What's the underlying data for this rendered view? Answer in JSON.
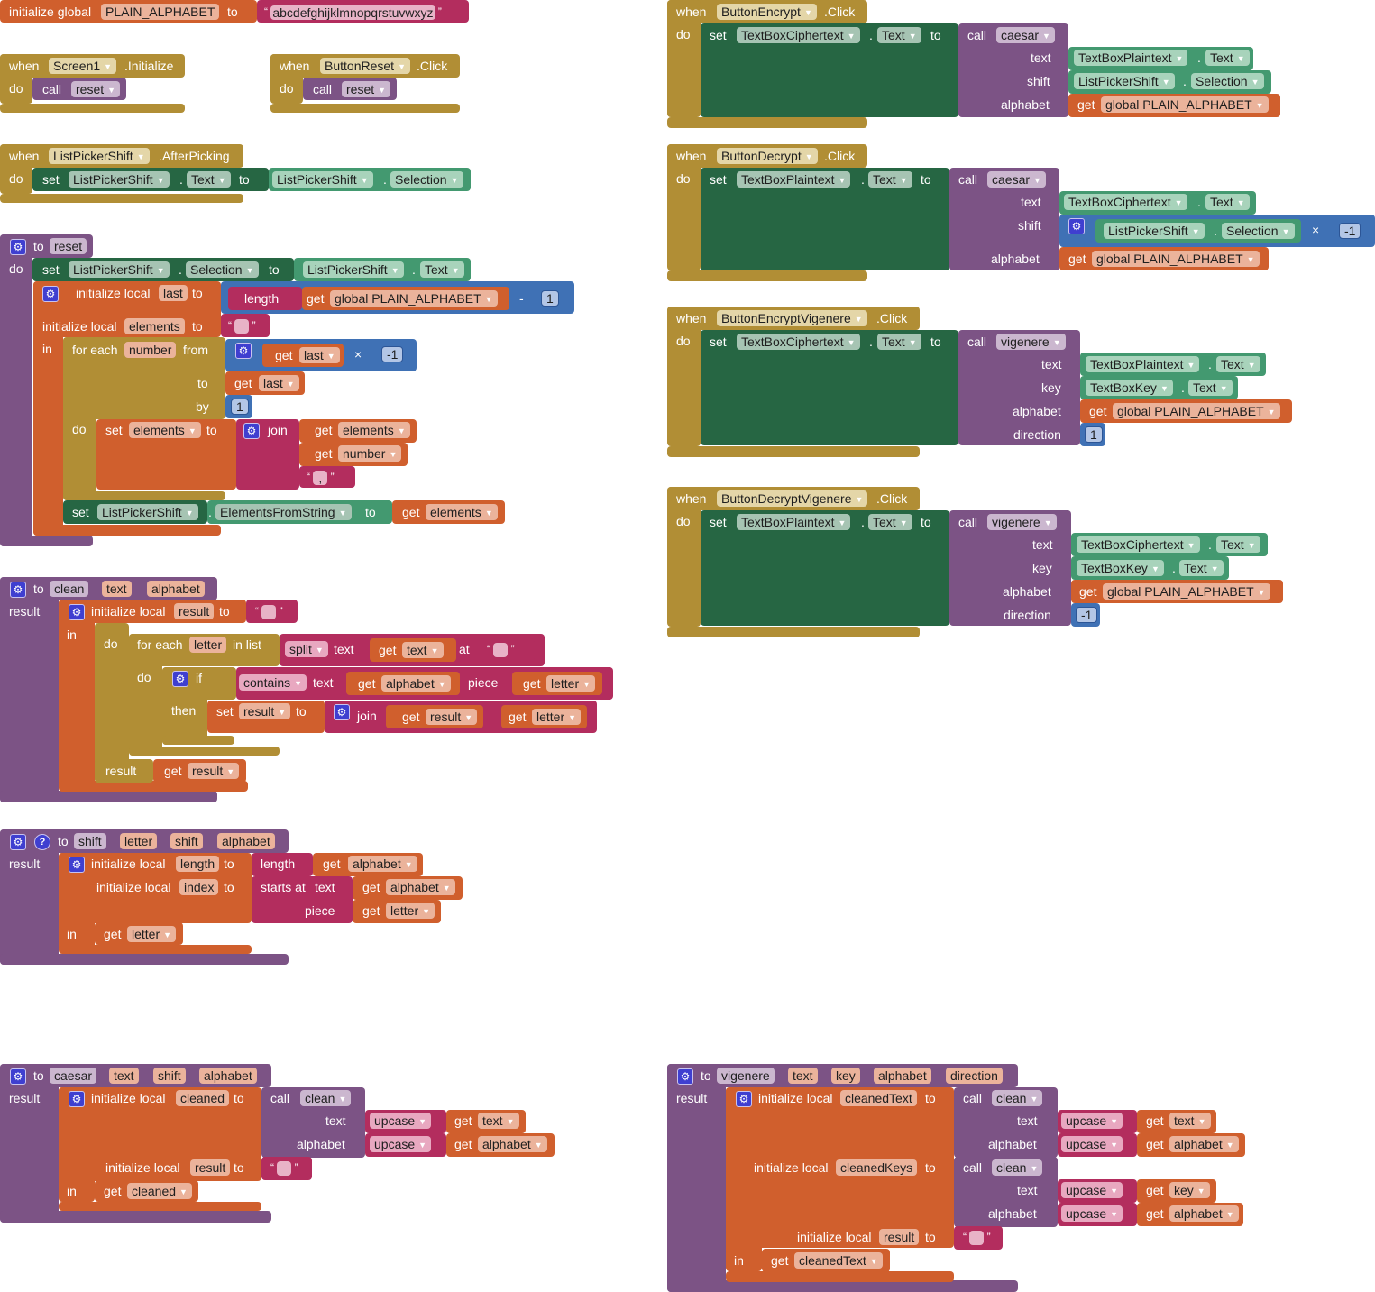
{
  "palette": {
    "event": "#b18e35",
    "setter": "#266643",
    "component": "#439970",
    "procedure": "#7c5385",
    "variable": "#d05f2d",
    "math": "#3f71b5",
    "text": "#b32d5e"
  },
  "blocks": [
    {
      "texts": [
        "initialize global",
        "PLAIN_ALPHABET",
        "to",
        "abcdefghijklmnopqrstuvwxyz"
      ]
    },
    {
      "texts": [
        "when",
        "Screen1",
        ".Initialize",
        "do",
        "call",
        "reset"
      ]
    },
    {
      "texts": [
        "when",
        "ButtonReset",
        ".Click",
        "do",
        "call",
        "reset"
      ]
    },
    {
      "texts": [
        "when",
        "ListPickerShift",
        ".AfterPicking",
        "do",
        "set",
        "ListPickerShift",
        ".",
        "Text",
        "to",
        "ListPickerShift",
        ".",
        "Selection"
      ]
    },
    {
      "texts": [
        "to",
        "reset",
        "do",
        "set",
        "ListPickerShift",
        ".",
        "Selection",
        "to",
        "ListPickerShift",
        ".",
        "Text",
        "initialize local",
        "last",
        "to",
        "length",
        "get",
        "global PLAIN_ALPHABET",
        "-",
        "1",
        "initialize local",
        "elements",
        "to",
        "",
        "in",
        "for each",
        "number",
        "from",
        "get",
        "last",
        "×",
        "-1",
        "to",
        "get",
        "last",
        "by",
        "1",
        "do",
        "set",
        "elements",
        "to",
        "join",
        "get",
        "elements",
        "get",
        "number",
        ",",
        "set",
        "ListPickerShift",
        ".",
        "ElementsFromString",
        "to",
        "get",
        "elements"
      ]
    },
    {
      "texts": [
        "to",
        "clean",
        "text",
        "alphabet",
        "result",
        "initialize local",
        "result",
        "to",
        "",
        "in",
        "do",
        "for each",
        "letter",
        "in list",
        "split",
        "text",
        "get",
        "text",
        "at",
        "",
        "do",
        "if",
        "contains",
        "text",
        "get",
        "alphabet",
        "piece",
        "get",
        "letter",
        "then",
        "set",
        "result",
        "to",
        "join",
        "get",
        "result",
        "get",
        "letter",
        "result",
        "get",
        "result"
      ]
    },
    {
      "texts": [
        "to",
        "shift",
        "letter",
        "shift",
        "alphabet",
        "result",
        "initialize local",
        "length",
        "to",
        "length",
        "get",
        "alphabet",
        "initialize local",
        "index",
        "to",
        "starts at",
        "text",
        "get",
        "alphabet",
        "piece",
        "get",
        "letter",
        "in",
        "get",
        "letter"
      ]
    },
    {
      "texts": [
        "to",
        "caesar",
        "text",
        "shift",
        "alphabet",
        "result",
        "initialize local",
        "cleaned",
        "to",
        "call",
        "clean",
        "text",
        "upcase",
        "get",
        "text",
        "alphabet",
        "upcase",
        "get",
        "alphabet",
        "initialize local",
        "result",
        "to",
        "",
        "in",
        "get",
        "cleaned"
      ]
    },
    {
      "texts": [
        "to",
        "vigenere",
        "text",
        "key",
        "alphabet",
        "direction",
        "result",
        "initialize local",
        "cleanedText",
        "to",
        "call",
        "clean",
        "text",
        "upcase",
        "get",
        "text",
        "alphabet",
        "upcase",
        "get",
        "alphabet",
        "initialize local",
        "cleanedKeys",
        "to",
        "call",
        "clean",
        "text",
        "upcase",
        "get",
        "key",
        "alphabet",
        "upcase",
        "get",
        "alphabet",
        "initialize local",
        "result",
        "to",
        "",
        "in",
        "get",
        "cleanedText"
      ]
    },
    {
      "texts": [
        "when",
        "ButtonEncrypt",
        ".Click",
        "do",
        "set",
        "TextBoxCiphertext",
        ".",
        "Text",
        "to",
        "call",
        "caesar",
        "text",
        "TextBoxPlaintext",
        ".",
        "Text",
        "shift",
        "ListPickerShift",
        ".",
        "Selection",
        "alphabet",
        "get",
        "global PLAIN_ALPHABET"
      ]
    },
    {
      "texts": [
        "when",
        "ButtonDecrypt",
        ".Click",
        "do",
        "set",
        "TextBoxPlaintext",
        ".",
        "Text",
        "to",
        "call",
        "caesar",
        "text",
        "TextBoxCiphertext",
        ".",
        "Text",
        "shift",
        "ListPickerShift",
        ".",
        "Selection",
        "×",
        "-1",
        "alphabet",
        "get",
        "global PLAIN_ALPHABET"
      ]
    },
    {
      "texts": [
        "when",
        "ButtonEncryptVigenere",
        ".Click",
        "do",
        "set",
        "TextBoxCiphertext",
        ".",
        "Text",
        "to",
        "call",
        "vigenere",
        "text",
        "TextBoxPlaintext",
        ".",
        "Text",
        "key",
        "TextBoxKey",
        ".",
        "Text",
        "alphabet",
        "get",
        "global PLAIN_ALPHABET",
        "direction",
        "1"
      ]
    },
    {
      "texts": [
        "when",
        "ButtonDecryptVigenere",
        ".Click",
        "do",
        "set",
        "TextBoxPlaintext",
        ".",
        "Text",
        "to",
        "call",
        "vigenere",
        "text",
        "TextBoxCiphertext",
        ".",
        "Text",
        "key",
        "TextBoxKey",
        ".",
        "Text",
        "alphabet",
        "get",
        "global PLAIN_ALPHABET",
        "direction",
        "-1"
      ]
    }
  ]
}
